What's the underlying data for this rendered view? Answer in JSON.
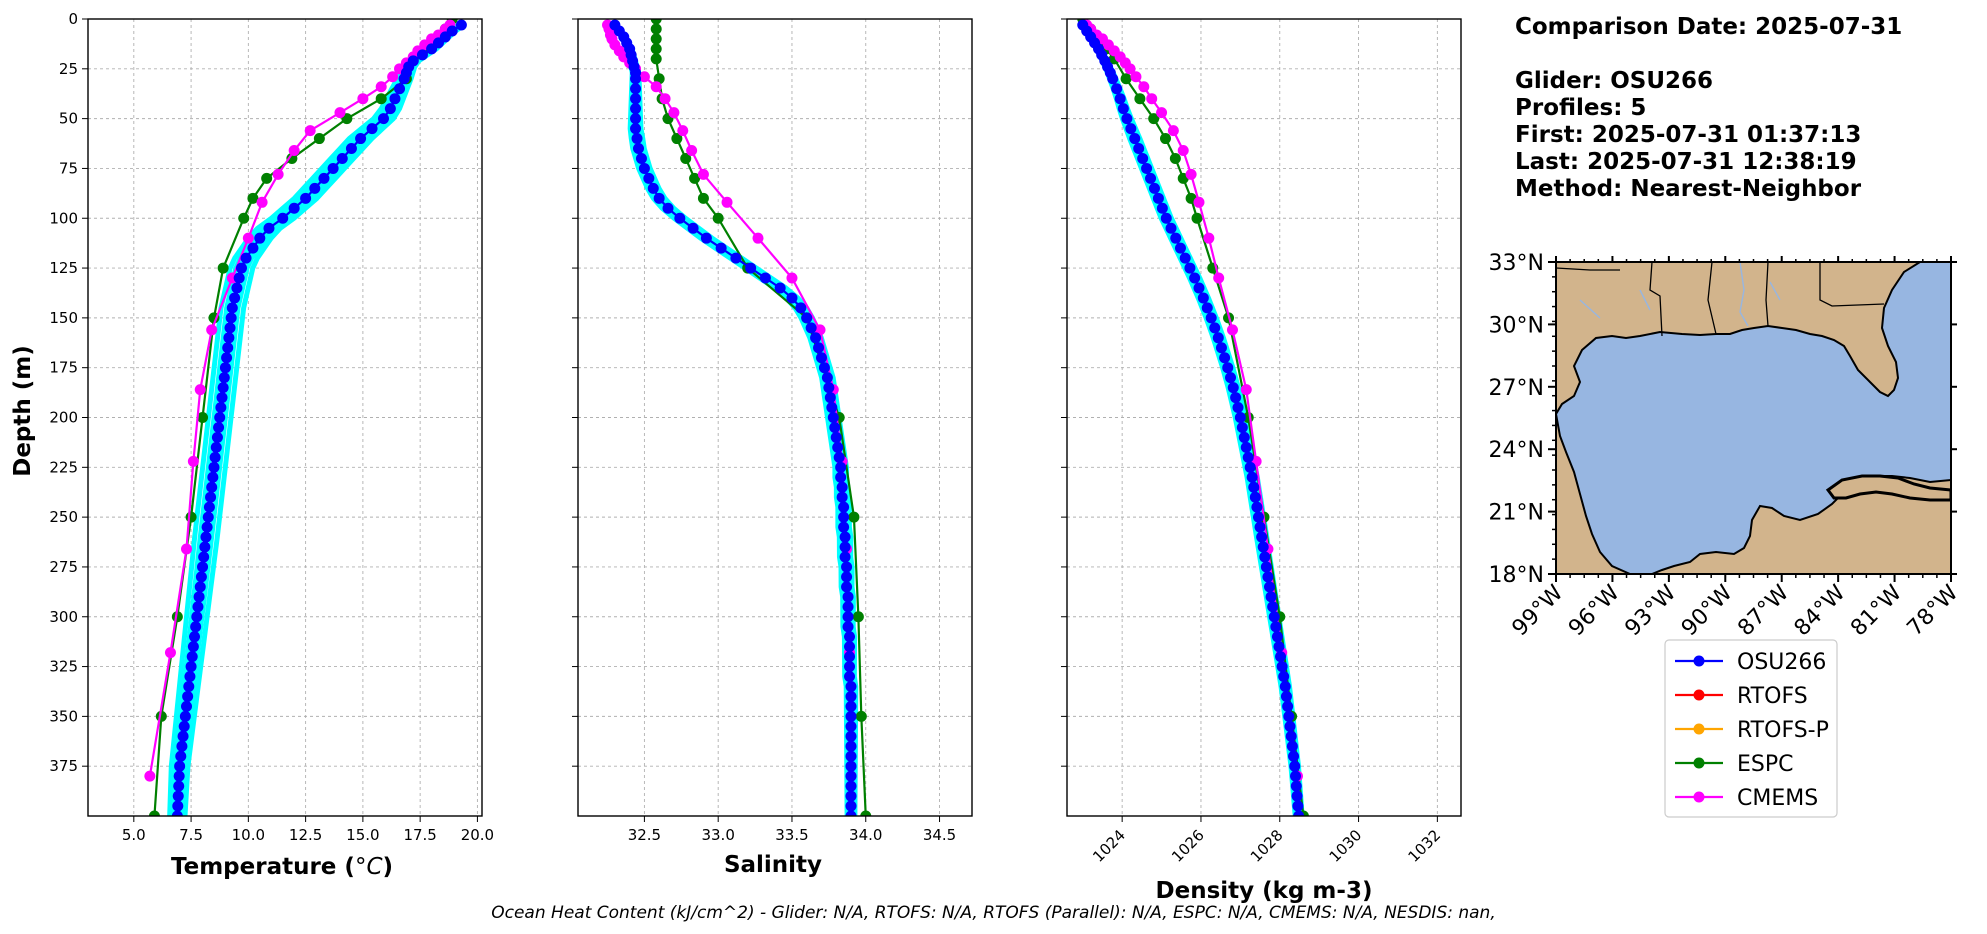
{
  "colors": {
    "glider": "#0000ff",
    "glider_profiles": "#00ffff",
    "rtofs": "#ff0000",
    "rtofs_p": "#ffa500",
    "espc": "#008000",
    "cmems": "#ff00ff",
    "land": "#d2b48c",
    "ocean": "#97b6e1",
    "grid": "#b0b0b0"
  },
  "info": {
    "comparison_date": "Comparison Date: 2025-07-31",
    "glider": "Glider: OSU266",
    "profiles": "Profiles: 5",
    "first": "First: 2025-07-31 01:37:13",
    "last": "Last: 2025-07-31 12:38:19",
    "method": "Method: Nearest-Neighbor"
  },
  "footer": "Ocean Heat Content (kJ/cm^2) - Glider: N/A,  RTOFS: N/A,  RTOFS (Parallel): N/A,  ESPC: N/A,  CMEMS: N/A,  NESDIS: nan,",
  "legend": [
    "OSU266",
    "RTOFS",
    "RTOFS-P",
    "ESPC",
    "CMEMS"
  ],
  "chart_data": [
    {
      "type": "line",
      "ylabel": "Depth (m)",
      "xlabel": "Temperature",
      "xlabel_unit": "°C",
      "ylim": [
        400,
        0
      ],
      "yticks": [
        "0",
        "25",
        "50",
        "75",
        "100",
        "125",
        "150",
        "175",
        "200",
        "225",
        "250",
        "275",
        "300",
        "325",
        "350",
        "375"
      ],
      "xlim": [
        3.0,
        20.2
      ],
      "xticks": [
        "5.0",
        "7.5",
        "10.0",
        "12.5",
        "15.0",
        "17.5",
        "20.0"
      ],
      "grid": true,
      "series": [
        {
          "name": "OSU266",
          "key": "glider",
          "depth": [
            3,
            6,
            9,
            12,
            15,
            18,
            21,
            24,
            27,
            30,
            35,
            40,
            45,
            50,
            55,
            60,
            65,
            70,
            75,
            80,
            85,
            90,
            95,
            100,
            105,
            110,
            115,
            120,
            125,
            130,
            135,
            140,
            145,
            150,
            155,
            160,
            165,
            170,
            175,
            180,
            185,
            190,
            195,
            200,
            205,
            210,
            215,
            220,
            225,
            230,
            235,
            240,
            245,
            250,
            255,
            260,
            265,
            270,
            275,
            280,
            285,
            290,
            295,
            300,
            305,
            310,
            315,
            320,
            325,
            330,
            335,
            340,
            345,
            350,
            355,
            360,
            365,
            370,
            375,
            380,
            385,
            390,
            395,
            400
          ],
          "values": [
            19.3,
            18.9,
            18.6,
            18.3,
            18.0,
            17.6,
            17.2,
            17.0,
            16.9,
            16.8,
            16.6,
            16.4,
            16.2,
            15.9,
            15.4,
            14.9,
            14.5,
            14.1,
            13.7,
            13.3,
            12.9,
            12.5,
            12.0,
            11.5,
            10.9,
            10.5,
            10.2,
            9.9,
            9.7,
            9.6,
            9.5,
            9.4,
            9.3,
            9.25,
            9.2,
            9.15,
            9.1,
            9.05,
            9.0,
            8.95,
            8.9,
            8.85,
            8.8,
            8.75,
            8.7,
            8.65,
            8.6,
            8.55,
            8.5,
            8.45,
            8.4,
            8.35,
            8.3,
            8.25,
            8.2,
            8.15,
            8.1,
            8.05,
            8.0,
            7.95,
            7.9,
            7.85,
            7.8,
            7.75,
            7.7,
            7.65,
            7.6,
            7.55,
            7.5,
            7.45,
            7.4,
            7.35,
            7.3,
            7.25,
            7.2,
            7.15,
            7.1,
            7.05,
            7.0,
            6.98,
            6.96,
            6.94,
            6.92,
            6.9
          ]
        },
        {
          "name": "ESPC",
          "key": "espc",
          "depth": [
            0,
            5,
            10,
            15,
            20,
            30,
            40,
            50,
            60,
            70,
            80,
            90,
            100,
            125,
            150,
            200,
            250,
            300,
            350,
            400
          ],
          "values": [
            18.9,
            18.6,
            18.2,
            17.7,
            17.2,
            16.9,
            15.8,
            14.3,
            13.1,
            11.9,
            10.8,
            10.2,
            9.8,
            8.9,
            8.5,
            8.0,
            7.5,
            6.9,
            6.2,
            5.9
          ]
        },
        {
          "name": "CMEMS",
          "key": "cmems",
          "depth": [
            3,
            5,
            8,
            10,
            13,
            16,
            19,
            22,
            25,
            29,
            34,
            40,
            47,
            56,
            66,
            78,
            92,
            110,
            130,
            156,
            186,
            222,
            266,
            318,
            380
          ],
          "values": [
            18.8,
            18.6,
            18.3,
            18.0,
            17.7,
            17.4,
            17.2,
            16.9,
            16.6,
            16.3,
            15.8,
            15.0,
            14.0,
            12.7,
            12.0,
            11.3,
            10.6,
            10.0,
            9.3,
            8.4,
            7.9,
            7.6,
            7.3,
            6.6,
            5.7
          ]
        }
      ]
    },
    {
      "type": "line",
      "xlabel": "Salinity",
      "ylim": [
        400,
        0
      ],
      "xlim": [
        32.05,
        34.72
      ],
      "xticks": [
        "32.5",
        "33.0",
        "33.5",
        "34.0",
        "34.5"
      ],
      "grid": true,
      "series": [
        {
          "name": "OSU266",
          "key": "glider",
          "depth": [
            3,
            6,
            9,
            12,
            15,
            18,
            21,
            24,
            27,
            30,
            35,
            40,
            45,
            50,
            55,
            60,
            65,
            70,
            75,
            80,
            85,
            90,
            95,
            100,
            105,
            110,
            115,
            120,
            125,
            130,
            135,
            140,
            145,
            150,
            155,
            160,
            165,
            170,
            175,
            180,
            185,
            190,
            195,
            200,
            205,
            210,
            215,
            220,
            225,
            230,
            235,
            240,
            245,
            250,
            255,
            260,
            265,
            270,
            275,
            280,
            285,
            290,
            295,
            300,
            305,
            310,
            315,
            320,
            325,
            330,
            335,
            340,
            345,
            350,
            355,
            360,
            365,
            370,
            375,
            380,
            385,
            390,
            395,
            400
          ],
          "values": [
            32.3,
            32.33,
            32.36,
            32.38,
            32.4,
            32.41,
            32.42,
            32.43,
            32.44,
            32.44,
            32.44,
            32.44,
            32.44,
            32.44,
            32.44,
            32.45,
            32.46,
            32.48,
            32.5,
            32.53,
            32.56,
            32.6,
            32.66,
            32.74,
            32.83,
            32.92,
            33.02,
            33.12,
            33.22,
            33.32,
            33.42,
            33.5,
            33.56,
            33.6,
            33.63,
            33.66,
            33.68,
            33.7,
            33.72,
            33.74,
            33.75,
            33.76,
            33.77,
            33.78,
            33.79,
            33.8,
            33.81,
            33.82,
            33.83,
            33.83,
            33.84,
            33.84,
            33.85,
            33.85,
            33.85,
            33.86,
            33.86,
            33.86,
            33.87,
            33.87,
            33.87,
            33.88,
            33.88,
            33.88,
            33.88,
            33.89,
            33.89,
            33.89,
            33.89,
            33.89,
            33.9,
            33.9,
            33.9,
            33.9,
            33.9,
            33.9,
            33.9,
            33.9,
            33.9,
            33.9,
            33.9,
            33.9,
            33.9,
            33.9
          ]
        },
        {
          "name": "ESPC",
          "key": "espc",
          "depth": [
            0,
            5,
            10,
            15,
            20,
            30,
            40,
            50,
            60,
            70,
            80,
            90,
            100,
            125,
            150,
            200,
            250,
            300,
            350,
            400
          ],
          "values": [
            32.58,
            32.58,
            32.58,
            32.58,
            32.58,
            32.6,
            32.62,
            32.66,
            32.72,
            32.78,
            32.84,
            32.9,
            33.0,
            33.2,
            33.6,
            33.82,
            33.92,
            33.95,
            33.97,
            34.0
          ]
        },
        {
          "name": "CMEMS",
          "key": "cmems",
          "depth": [
            3,
            5,
            8,
            10,
            13,
            16,
            19,
            22,
            25,
            29,
            34,
            40,
            47,
            56,
            66,
            78,
            92,
            110,
            130,
            156,
            186,
            222,
            266,
            318,
            380
          ],
          "values": [
            32.25,
            32.26,
            32.27,
            32.28,
            32.3,
            32.33,
            32.36,
            32.4,
            32.44,
            32.5,
            32.58,
            32.64,
            32.7,
            32.76,
            32.82,
            32.9,
            33.06,
            33.27,
            33.5,
            33.69,
            33.78,
            33.84,
            33.87,
            33.89,
            33.9
          ]
        }
      ]
    },
    {
      "type": "line",
      "xlabel": "Density (kg m-3)",
      "ylim": [
        400,
        0
      ],
      "xlim": [
        1022.6,
        1032.6
      ],
      "xticks": [
        "1024",
        "1026",
        "1028",
        "1030",
        "1032"
      ],
      "grid": true,
      "series": [
        {
          "name": "OSU266",
          "key": "glider",
          "depth": [
            3,
            6,
            9,
            12,
            15,
            18,
            21,
            24,
            27,
            30,
            35,
            40,
            45,
            50,
            55,
            60,
            65,
            70,
            75,
            80,
            85,
            90,
            95,
            100,
            105,
            110,
            115,
            120,
            125,
            130,
            135,
            140,
            145,
            150,
            155,
            160,
            165,
            170,
            175,
            180,
            185,
            190,
            195,
            200,
            205,
            210,
            215,
            220,
            225,
            230,
            235,
            240,
            245,
            250,
            255,
            260,
            265,
            270,
            275,
            280,
            285,
            290,
            295,
            300,
            305,
            310,
            315,
            320,
            325,
            330,
            335,
            340,
            345,
            350,
            355,
            360,
            365,
            370,
            375,
            380,
            385,
            390,
            395,
            400
          ],
          "values": [
            1023.0,
            1023.1,
            1023.2,
            1023.3,
            1023.4,
            1023.48,
            1023.56,
            1023.63,
            1023.7,
            1023.76,
            1023.86,
            1023.95,
            1024.03,
            1024.12,
            1024.22,
            1024.32,
            1024.42,
            1024.52,
            1024.62,
            1024.72,
            1024.82,
            1024.92,
            1025.02,
            1025.12,
            1025.24,
            1025.36,
            1025.48,
            1025.6,
            1025.72,
            1025.84,
            1025.95,
            1026.06,
            1026.16,
            1026.26,
            1026.35,
            1026.44,
            1026.52,
            1026.6,
            1026.68,
            1026.75,
            1026.82,
            1026.88,
            1026.94,
            1027.0,
            1027.05,
            1027.1,
            1027.15,
            1027.2,
            1027.25,
            1027.3,
            1027.34,
            1027.38,
            1027.42,
            1027.46,
            1027.5,
            1027.54,
            1027.58,
            1027.62,
            1027.66,
            1027.7,
            1027.74,
            1027.78,
            1027.82,
            1027.86,
            1027.9,
            1027.94,
            1027.98,
            1028.02,
            1028.06,
            1028.1,
            1028.14,
            1028.17,
            1028.2,
            1028.23,
            1028.26,
            1028.29,
            1028.32,
            1028.35,
            1028.38,
            1028.4,
            1028.42,
            1028.44,
            1028.46,
            1028.48
          ]
        },
        {
          "name": "ESPC",
          "key": "espc",
          "depth": [
            0,
            5,
            10,
            15,
            20,
            30,
            40,
            50,
            60,
            70,
            80,
            90,
            100,
            125,
            150,
            200,
            250,
            300,
            350,
            400
          ],
          "values": [
            1023.0,
            1023.2,
            1023.4,
            1023.6,
            1023.8,
            1024.1,
            1024.45,
            1024.8,
            1025.1,
            1025.35,
            1025.55,
            1025.75,
            1025.9,
            1026.3,
            1026.7,
            1027.2,
            1027.6,
            1028.0,
            1028.3,
            1028.6
          ]
        },
        {
          "name": "CMEMS",
          "key": "cmems",
          "depth": [
            3,
            5,
            8,
            10,
            13,
            16,
            19,
            22,
            25,
            29,
            34,
            40,
            47,
            56,
            66,
            78,
            92,
            110,
            130,
            156,
            186,
            222,
            266,
            318,
            380
          ],
          "values": [
            1023.1,
            1023.2,
            1023.35,
            1023.5,
            1023.65,
            1023.8,
            1023.95,
            1024.08,
            1024.2,
            1024.35,
            1024.55,
            1024.75,
            1025.0,
            1025.3,
            1025.55,
            1025.75,
            1025.95,
            1026.2,
            1026.45,
            1026.8,
            1027.15,
            1027.4,
            1027.7,
            1028.05,
            1028.45
          ]
        }
      ]
    }
  ],
  "map": {
    "lat_labels": [
      "33°N",
      "30°N",
      "27°N",
      "24°N",
      "21°N",
      "18°N"
    ],
    "lon_labels": [
      "99°W",
      "96°W",
      "93°W",
      "90°W",
      "87°W",
      "84°W",
      "81°W",
      "78°W"
    ]
  }
}
